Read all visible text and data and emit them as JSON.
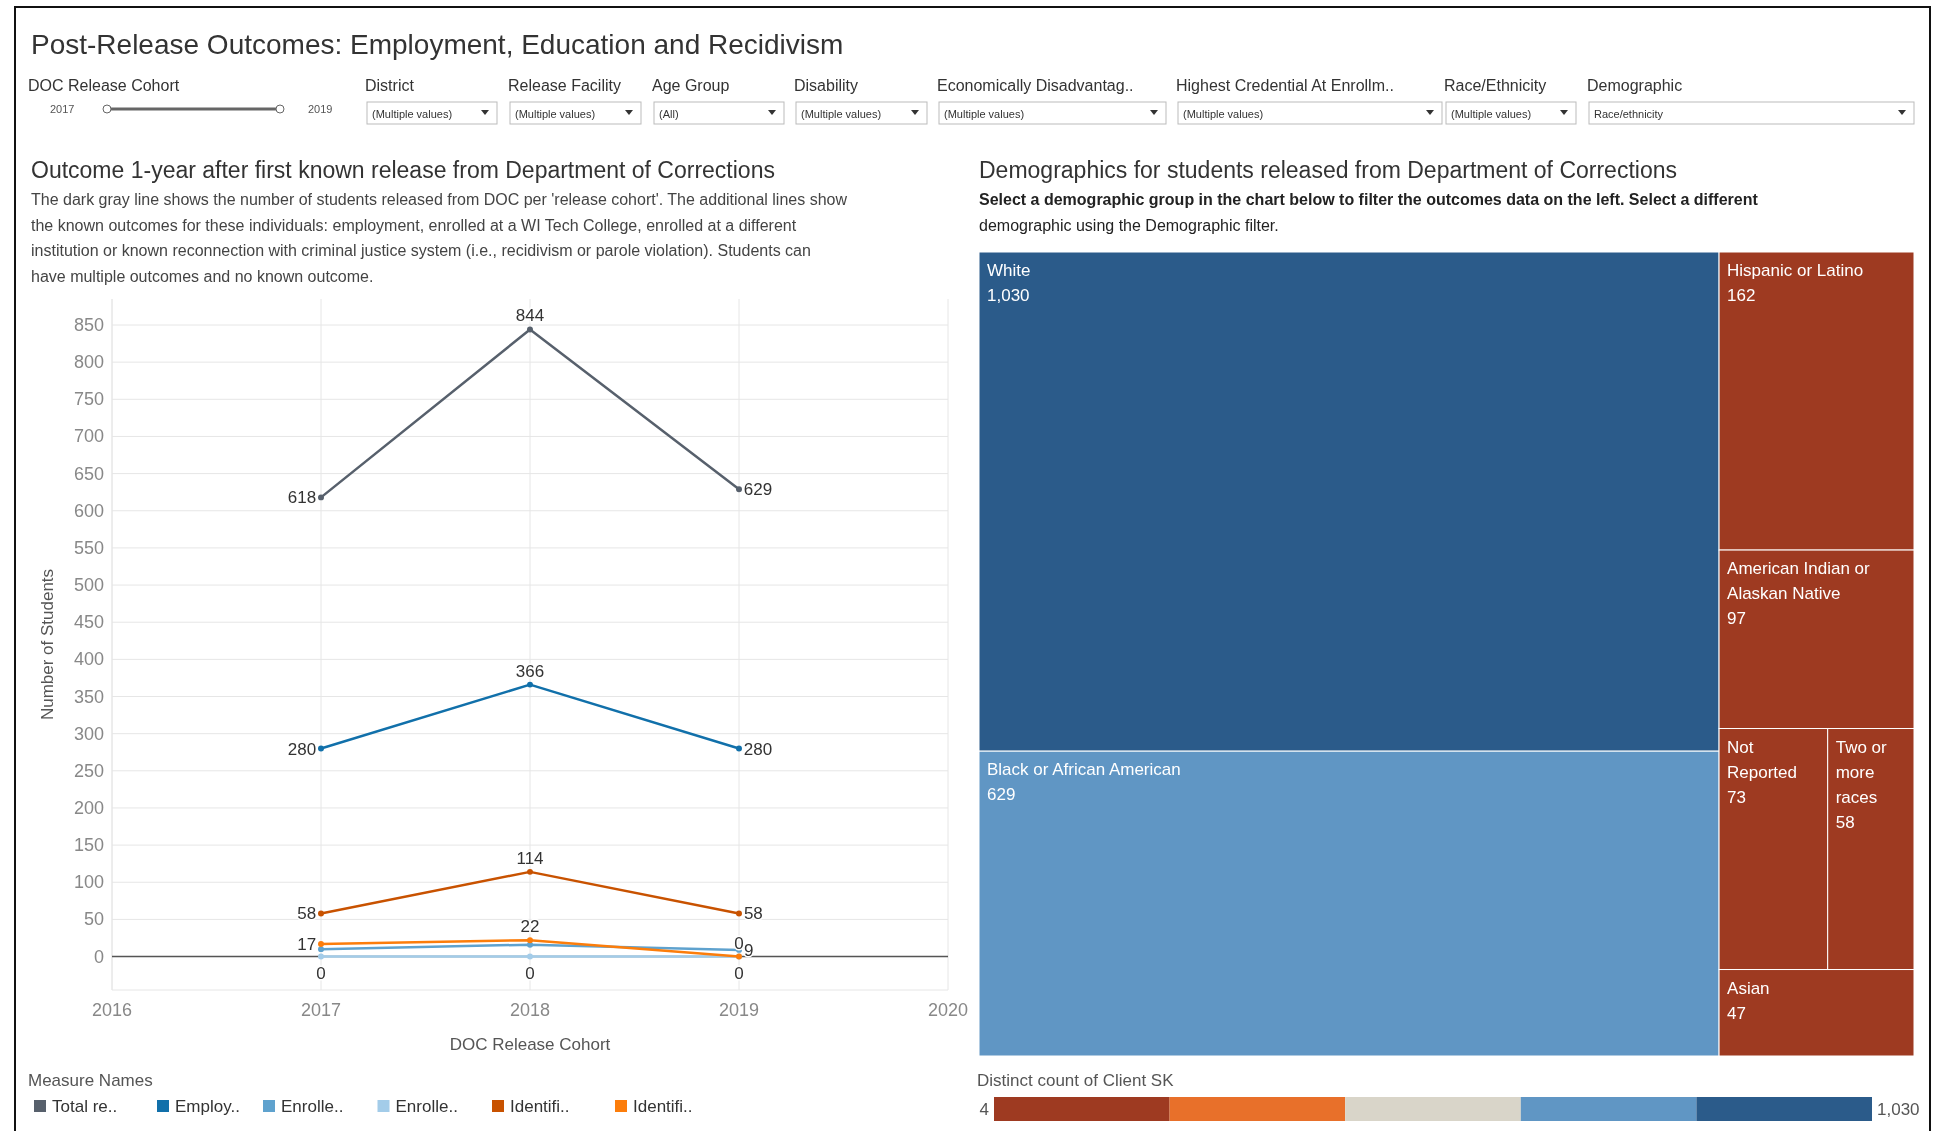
{
  "chart_data": [
    {
      "type": "other",
      "title": "Post-Release Outcomes: Employment, Education and Recidivism",
      "annotations": [
        "DOC Release Cohort",
        "2017",
        "2019",
        "District",
        "(Multiple values)",
        "Release Facility",
        "(Multiple values)",
        "Age Group",
        "(All)",
        "Disability",
        "(Multiple values)",
        "Economically Disadvantag..",
        "(Multiple values)",
        "Highest Credential At Enrollm..",
        "(Multiple values)",
        "Race/Ethnicity",
        "(Multiple values)",
        "Demographic",
        "Race/ethnicity"
      ]
    },
    {
      "type": "line",
      "title": "Outcome 1-year after first known release from Department of Corrections",
      "subtitle": "The dark gray line shows the number of students released from DOC per 'release cohort'. The additional lines show the known outcomes for these individuals: employment, enrolled at a WI Tech College, enrolled at a different institution or known reconnection with criminal justice system (i.e., recidivism or parole violation). Students can have multiple outcomes and no known outcome.",
      "xlabel": "DOC Release Cohort",
      "ylabel": "Number of Students",
      "legend_title": "Measure Names",
      "x": [
        2017,
        2018,
        2019
      ],
      "xlim": [
        2016,
        2020
      ],
      "xticks": [
        2016,
        2017,
        2018,
        2019,
        2020
      ],
      "ylim": [
        -45,
        885
      ],
      "yticks": [
        0,
        50,
        100,
        150,
        200,
        250,
        300,
        350,
        400,
        450,
        500,
        550,
        600,
        650,
        700,
        750,
        800,
        850
      ],
      "grid": true,
      "legend": "bottom",
      "marker": "circle",
      "ref_lines": [
        {
          "axis": "y",
          "value": 0,
          "color": "#555555"
        }
      ],
      "series": [
        {
          "name": "Total re..",
          "color": "#57606c",
          "values": [
            618,
            844,
            629
          ],
          "value_labels": [
            "618",
            "844",
            "629"
          ]
        },
        {
          "name": "Employ..",
          "color": "#1170aa",
          "values": [
            280,
            366,
            280
          ],
          "value_labels": [
            "280",
            "366",
            "280"
          ]
        },
        {
          "name": "Enrolle..",
          "color": "#5fa2ce",
          "values": [
            10,
            16,
            9
          ],
          "value_labels": [
            null,
            null,
            "9"
          ]
        },
        {
          "name": "Enrolle..",
          "color": "#a3cce9",
          "values": [
            0,
            0,
            0
          ],
          "value_labels": [
            "0",
            "0",
            "0"
          ]
        },
        {
          "name": "Identifi..",
          "color": "#c85200",
          "values": [
            58,
            114,
            58
          ],
          "value_labels": [
            "58",
            "114",
            "58"
          ]
        },
        {
          "name": "Identifi..",
          "color": "#fc7d0b",
          "values": [
            17,
            22,
            0
          ],
          "value_labels": [
            "17",
            "22",
            "0"
          ]
        }
      ]
    },
    {
      "type": "other",
      "title": "Demographics for students released from Department of Corrections",
      "subtitle": "Select a demographic group in the chart below to filter the outcomes data on the left. Select a different demographic using the Demographic filter.",
      "categories": [
        "White",
        "Black or African American",
        "Hispanic or Latino",
        "American Indian or Alaskan Native",
        "Not Reported",
        "Two or more races",
        "Asian"
      ],
      "values": [
        1030,
        629,
        162,
        97,
        73,
        58,
        47
      ],
      "value_labels": [
        "1,030",
        "629",
        "162",
        "97",
        "73",
        "58",
        "47"
      ],
      "colors": [
        "#2b5b8a",
        "#6096c4",
        "#9e3a21",
        "#9e3a21",
        "#9e3a21",
        "#9e3a21",
        "#9e3a21"
      ],
      "clabel": "Distinct count of Client SK",
      "annotations": [
        "4",
        "1,030"
      ]
    }
  ]
}
